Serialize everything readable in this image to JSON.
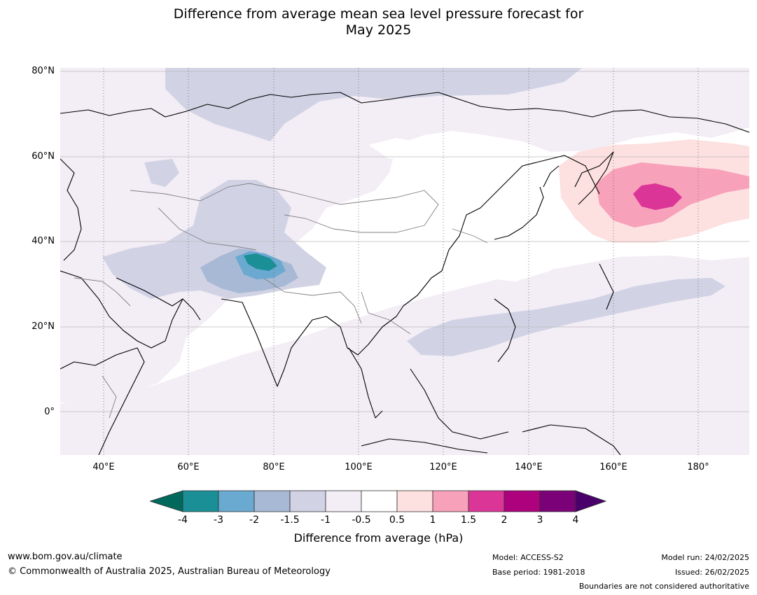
{
  "title": {
    "line1": "Difference from average mean sea level pressure forecast for",
    "line2": "May 2025"
  },
  "map": {
    "lat_labels": [
      "80°N",
      "60°N",
      "40°N",
      "20°N",
      "0°"
    ],
    "lon_labels": [
      "40°E",
      "60°E",
      "80°E",
      "100°E",
      "120°E",
      "140°E",
      "160°E",
      "180°"
    ],
    "colors": {
      "c_m4": "#1a8f96",
      "c_m3": "#6aa9d0",
      "c_m2": "#a8b9d6",
      "c_m15": "#d1d3e5",
      "c_m1": "#f3edf5",
      "c_05": "#ffffff",
      "c_p05": "#fde0e0",
      "c_p1": "#f7a1ba",
      "c_p15": "#dc3598",
      "c_p2": "#ae017e",
      "c_p3": "#7a0177",
      "c_p4": "#49006a",
      "c_low_end": "#00695c"
    }
  },
  "colorbar": {
    "ticks": [
      "-4",
      "-3",
      "-2",
      "-1.5",
      "-1",
      "-0.5",
      "0.5",
      "1",
      "1.5",
      "2",
      "3",
      "4"
    ],
    "label": "Difference from average (hPa)"
  },
  "footer": {
    "website": "www.bom.gov.au/climate",
    "copyright": "© Commonwealth of Australia 2025, Australian Bureau of Meteorology",
    "model": "Model: ACCESS-S2",
    "base_period": "Base period: 1981-2018",
    "model_run": "Model run: 24/02/2025",
    "issued": "Issued: 26/02/2025",
    "disclaimer": "Boundaries are not considered authoritative"
  }
}
